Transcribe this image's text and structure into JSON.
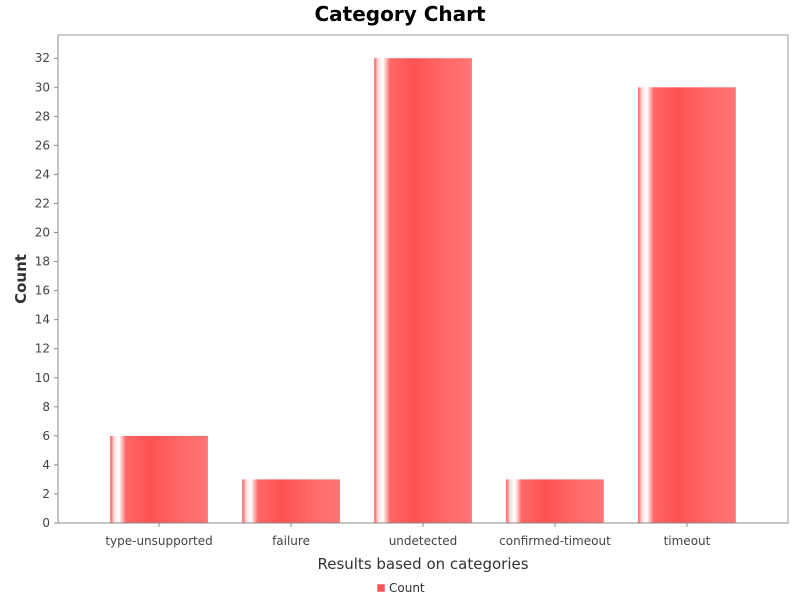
{
  "chart_data": {
    "type": "bar",
    "title": "Category Chart",
    "xlabel": "Results based on categories",
    "ylabel": "Count",
    "categories": [
      "type-unsupported",
      "failure",
      "undetected",
      "confirmed-timeout",
      "timeout"
    ],
    "series": [
      {
        "name": "Count",
        "values": [
          6,
          3,
          32,
          3,
          30
        ],
        "color": "#ff5555"
      }
    ],
    "ylim": [
      0,
      33.6
    ],
    "yticks": [
      0,
      2,
      4,
      6,
      8,
      10,
      12,
      14,
      16,
      18,
      20,
      22,
      24,
      26,
      28,
      30,
      32
    ],
    "grid": false,
    "legend": "bottom-center"
  }
}
